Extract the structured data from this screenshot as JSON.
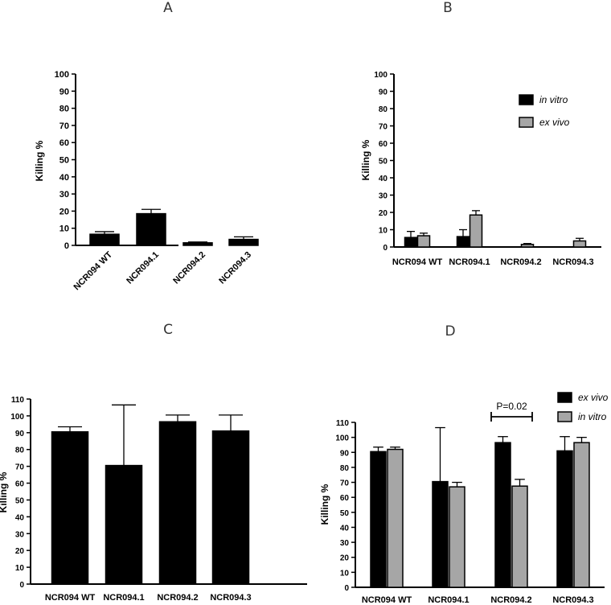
{
  "chart_data": [
    {
      "panel": "A",
      "type": "bar",
      "ylabel": "Killing %",
      "ylim": [
        0,
        100
      ],
      "yticks": [
        0,
        10,
        20,
        30,
        40,
        50,
        60,
        70,
        80,
        90,
        100
      ],
      "categories": [
        "NCR094 WT",
        "NCR094.1",
        "NCR094.2",
        "NCR094.3"
      ],
      "series": [
        {
          "values": [
            6.5,
            18.5,
            1.5,
            3.5
          ],
          "errors": [
            1.5,
            2.5,
            0.5,
            1.5
          ],
          "color": "#000000"
        }
      ]
    },
    {
      "panel": "B",
      "type": "bar",
      "ylabel": "Killing %",
      "ylim": [
        0,
        100
      ],
      "yticks": [
        0,
        10,
        20,
        30,
        40,
        50,
        60,
        70,
        80,
        90,
        100
      ],
      "categories": [
        "NCR094 WT",
        "NCR094.1",
        "NCR094.2",
        "NCR094.3"
      ],
      "legend": "top-right",
      "series": [
        {
          "name": "in vitro",
          "values": [
            5.5,
            6.0,
            0,
            0
          ],
          "errors": [
            3.5,
            4.0,
            0,
            0
          ],
          "color": "#000000"
        },
        {
          "name": "ex vivo",
          "values": [
            6.5,
            18.5,
            1.5,
            3.5
          ],
          "errors": [
            1.5,
            2.5,
            0.5,
            1.5
          ],
          "color": "#a6a6a6"
        }
      ]
    },
    {
      "panel": "C",
      "type": "bar",
      "ylabel": "Killing %",
      "ylim": [
        0,
        110
      ],
      "yticks": [
        0,
        10,
        20,
        30,
        40,
        50,
        60,
        70,
        80,
        90,
        100,
        110
      ],
      "categories": [
        "NCR094 WT",
        "NCR094.1",
        "NCR094.2",
        "NCR094.3"
      ],
      "series": [
        {
          "values": [
            90.5,
            70.5,
            96.5,
            91.0
          ],
          "errors": [
            3.0,
            36.0,
            4.0,
            9.5
          ],
          "color": "#000000"
        }
      ]
    },
    {
      "panel": "D",
      "type": "bar",
      "ylabel": "Killing %",
      "ylim": [
        0,
        110
      ],
      "yticks": [
        0,
        10,
        20,
        30,
        40,
        50,
        60,
        70,
        80,
        90,
        100,
        110
      ],
      "categories": [
        "NCR094 WT",
        "NCR094.1",
        "NCR094.2",
        "NCR094.3"
      ],
      "legend": "top-right",
      "annotation": {
        "text": "P=0.02",
        "category": "NCR094.2"
      },
      "series": [
        {
          "name": "ex vivo",
          "values": [
            90.5,
            70.5,
            96.5,
            91.0
          ],
          "errors": [
            3.0,
            36.0,
            4.0,
            9.5
          ],
          "color": "#000000"
        },
        {
          "name": "in vitro",
          "values": [
            92.0,
            67.0,
            67.5,
            96.5
          ],
          "errors": [
            1.5,
            3.0,
            4.5,
            3.5
          ],
          "color": "#a6a6a6"
        }
      ]
    }
  ]
}
